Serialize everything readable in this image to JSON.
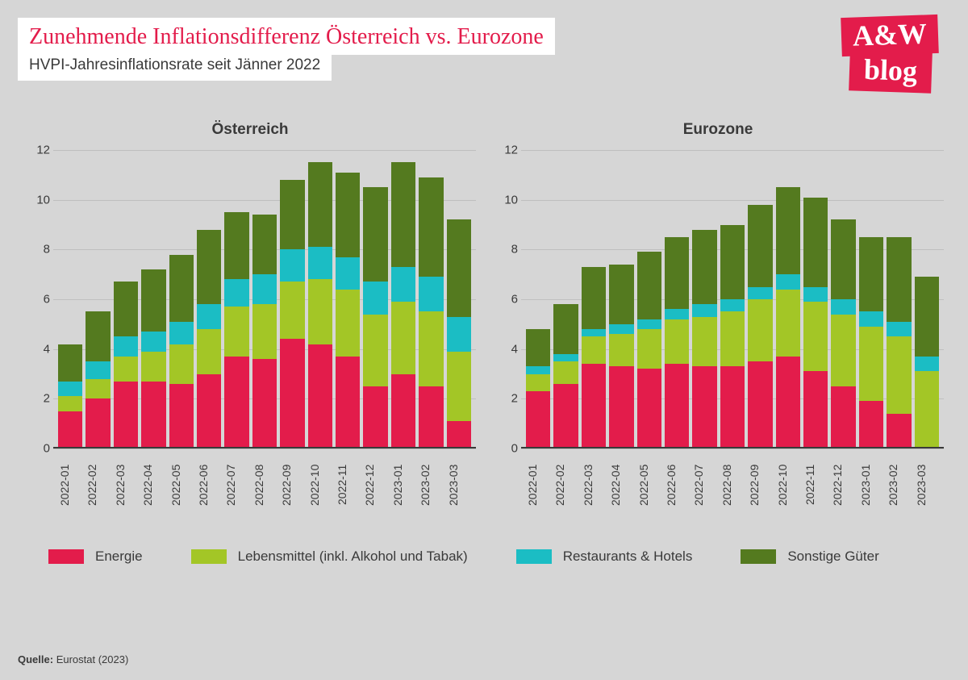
{
  "header": {
    "title": "Zunehmende Inflationsdifferenz Österreich vs. Eurozone",
    "subtitle": "HVPI-Jahresinflationsrate seit Jänner 2022"
  },
  "logo": {
    "top": "A&W",
    "bottom": "blog"
  },
  "chart": {
    "type": "stacked-bar",
    "background_color": "#d6d6d6",
    "grid_color": "#bfbfbf",
    "axis_color": "#3a3a3a",
    "y_max": 12,
    "y_ticks": [
      0,
      2,
      4,
      6,
      8,
      10,
      12
    ],
    "categories": [
      "2022-01",
      "2022-02",
      "2022-03",
      "2022-04",
      "2022-05",
      "2022-06",
      "2022-07",
      "2022-08",
      "2022-09",
      "2022-10",
      "2022-11",
      "2022-12",
      "2023-01",
      "2023-02",
      "2023-03"
    ],
    "series": [
      {
        "key": "energie",
        "label": "Energie",
        "color": "#e31c4b"
      },
      {
        "key": "lebensmittel",
        "label": "Lebensmittel (inkl. Alkohol und Tabak)",
        "color": "#a3c626"
      },
      {
        "key": "restaurants",
        "label": "Restaurants & Hotels",
        "color": "#1bbdc4"
      },
      {
        "key": "sonstige",
        "label": "Sonstige Güter",
        "color": "#547a1f"
      }
    ],
    "panels": [
      {
        "title": "Österreich",
        "data": {
          "energie": [
            1.5,
            2.0,
            2.7,
            2.7,
            2.6,
            3.0,
            3.7,
            3.6,
            4.4,
            4.2,
            3.7,
            2.5,
            3.0,
            2.5,
            1.1
          ],
          "lebensmittel": [
            0.6,
            0.8,
            1.0,
            1.2,
            1.6,
            1.8,
            2.0,
            2.2,
            2.3,
            2.6,
            2.7,
            2.9,
            2.9,
            3.0,
            2.8
          ],
          "restaurants": [
            0.6,
            0.7,
            0.8,
            0.8,
            0.9,
            1.0,
            1.1,
            1.2,
            1.3,
            1.3,
            1.3,
            1.3,
            1.4,
            1.4,
            1.4
          ],
          "sonstige": [
            1.5,
            2.0,
            2.2,
            2.5,
            2.7,
            3.0,
            2.7,
            2.4,
            2.8,
            3.4,
            3.4,
            3.8,
            4.2,
            4.0,
            3.9
          ]
        }
      },
      {
        "title": "Eurozone",
        "data": {
          "energie": [
            2.3,
            2.6,
            3.4,
            3.3,
            3.2,
            3.4,
            3.3,
            3.3,
            3.5,
            3.7,
            3.1,
            2.5,
            1.9,
            1.4,
            0.0
          ],
          "lebensmittel": [
            0.7,
            0.9,
            1.1,
            1.3,
            1.6,
            1.8,
            2.0,
            2.2,
            2.5,
            2.7,
            2.8,
            2.9,
            3.0,
            3.1,
            3.1
          ],
          "restaurants": [
            0.3,
            0.3,
            0.3,
            0.4,
            0.4,
            0.4,
            0.5,
            0.5,
            0.5,
            0.6,
            0.6,
            0.6,
            0.6,
            0.6,
            0.6
          ],
          "sonstige": [
            1.5,
            2.0,
            2.5,
            2.4,
            2.7,
            2.9,
            3.0,
            3.0,
            3.3,
            3.5,
            3.6,
            3.2,
            3.0,
            3.4,
            3.2
          ]
        }
      }
    ]
  },
  "source": {
    "label": "Quelle:",
    "text": "Eurostat (2023)"
  }
}
